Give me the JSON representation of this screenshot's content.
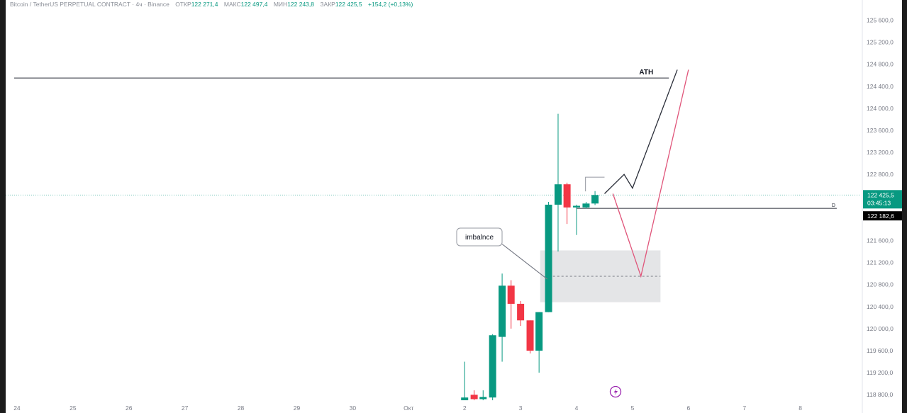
{
  "header": {
    "symbol": "Bitcoin / TetherUS PERPETUAL CONTRACT · 4ч · Binance",
    "open_label": "ОТКР",
    "open_value": "122 271,4",
    "high_label": "МАКС",
    "high_value": "122 497,4",
    "low_label": "МИН",
    "low_value": "122 243,8",
    "close_label": "ЗАКР",
    "close_value": "122 425,5",
    "change": "+154,2 (+0,13%)"
  },
  "price_scale": {
    "last_price_label": "122 425,5",
    "countdown_label": "03:45:13",
    "level_price_label": "122 182,6",
    "colors": {
      "last_price_bg": "#089981",
      "level_bg": "#000000"
    }
  },
  "annotations": {
    "ath_label": "ATH",
    "imbalance_label": "imbalnce",
    "level_tag": "D",
    "lightning_icon": "lightning-icon"
  },
  "colors": {
    "up": "#089981",
    "down": "#f23645",
    "bullish_path": "#2a2e39",
    "bearish_path": "#e0557a"
  },
  "chart_data": {
    "type": "candlestick",
    "y_ticks": [
      125600,
      125200,
      124800,
      124400,
      124000,
      123600,
      123200,
      122800,
      121600,
      121200,
      120800,
      120400,
      120000,
      119600,
      119200,
      118800
    ],
    "y_tick_labels": [
      "125 600,0",
      "125 200,0",
      "124 800,0",
      "124 400,0",
      "124 000,0",
      "123 600,0",
      "123 200,0",
      "122 800,0",
      "121 600,0",
      "121 200,0",
      "120 800,0",
      "120 400,0",
      "120 000,0",
      "119 600,0",
      "119 200,0",
      "118 800,0"
    ],
    "ylim": [
      118700,
      125850
    ],
    "x_ticks": [
      {
        "label": "24",
        "day": -7
      },
      {
        "label": "25",
        "day": -6
      },
      {
        "label": "26",
        "day": -5
      },
      {
        "label": "27",
        "day": -4
      },
      {
        "label": "28",
        "day": -3
      },
      {
        "label": "29",
        "day": -2
      },
      {
        "label": "30",
        "day": -1
      },
      {
        "label": "Окт",
        "day": 0
      },
      {
        "label": "2",
        "day": 1
      },
      {
        "label": "3",
        "day": 2
      },
      {
        "label": "4",
        "day": 3
      },
      {
        "label": "5",
        "day": 4
      },
      {
        "label": "6",
        "day": 5
      },
      {
        "label": "7",
        "day": 6
      },
      {
        "label": "8",
        "day": 7
      }
    ],
    "xlim_days": [
      -7.05,
      7.6
    ],
    "candles": [
      {
        "t": 1.0,
        "o": 118700,
        "h": 119400,
        "l": 118700,
        "c": 118750
      },
      {
        "t": 1.17,
        "o": 118800,
        "h": 118880,
        "l": 118700,
        "c": 118720
      },
      {
        "t": 1.33,
        "o": 118720,
        "h": 118880,
        "l": 118700,
        "c": 118760
      },
      {
        "t": 1.5,
        "o": 118750,
        "h": 119900,
        "l": 118700,
        "c": 119880
      },
      {
        "t": 1.67,
        "o": 119850,
        "h": 121000,
        "l": 119400,
        "c": 120780
      },
      {
        "t": 1.83,
        "o": 120780,
        "h": 120880,
        "l": 120000,
        "c": 120450
      },
      {
        "t": 2.0,
        "o": 120450,
        "h": 120500,
        "l": 120050,
        "c": 120150
      },
      {
        "t": 2.17,
        "o": 120150,
        "h": 120150,
        "l": 119550,
        "c": 119600
      },
      {
        "t": 2.33,
        "o": 119600,
        "h": 120300,
        "l": 119200,
        "c": 120300
      },
      {
        "t": 2.5,
        "o": 120300,
        "h": 122300,
        "l": 120300,
        "c": 122250
      },
      {
        "t": 2.67,
        "o": 122250,
        "h": 123900,
        "l": 121400,
        "c": 122620
      },
      {
        "t": 2.83,
        "o": 122620,
        "h": 122650,
        "l": 121900,
        "c": 122200
      },
      {
        "t": 3.0,
        "o": 122200,
        "h": 122250,
        "l": 121700,
        "c": 122230
      },
      {
        "t": 3.17,
        "o": 122200,
        "h": 122300,
        "l": 122180,
        "c": 122271
      },
      {
        "t": 3.33,
        "o": 122271.4,
        "h": 122497.4,
        "l": 122243.8,
        "c": 122425.5
      }
    ],
    "last_price": 122425.5,
    "horizontal_levels": [
      {
        "name": "ATH",
        "price": 124550,
        "from_day": -7.05,
        "to_day": 4.65
      },
      {
        "name": "D",
        "price": 122182.6,
        "from_day": 3.0,
        "to_day": 7.65
      }
    ],
    "zones": [
      {
        "name": "imbalance",
        "from_day": 2.35,
        "to_day": 4.5,
        "top": 121420,
        "bottom": 120480,
        "mid": 120950
      }
    ],
    "projections": [
      {
        "name": "bullish",
        "points": [
          [
            3.5,
            122450
          ],
          [
            3.85,
            122800
          ],
          [
            4.0,
            122550
          ],
          [
            4.8,
            124700
          ]
        ]
      },
      {
        "name": "bearish",
        "points": [
          [
            3.65,
            122450
          ],
          [
            4.15,
            120950
          ],
          [
            5.0,
            124700
          ]
        ]
      }
    ],
    "marker_box": {
      "from_day": 3.16,
      "to_day": 3.5,
      "price": 122750
    }
  }
}
